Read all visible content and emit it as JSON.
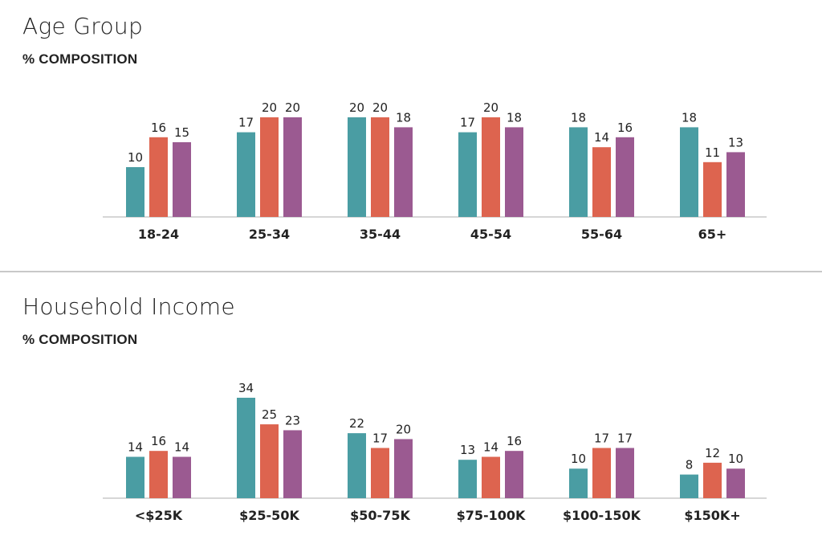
{
  "colors": [
    "#4a9da3",
    "#dd644f",
    "#9b5a91"
  ],
  "axis_color": "#c8c8c8",
  "chart_data": [
    {
      "type": "bar",
      "title": "Age Group",
      "subtitle": "% COMPOSITION",
      "categories": [
        "18-24",
        "25-34",
        "35-44",
        "45-54",
        "55-64",
        "65+"
      ],
      "series": [
        {
          "values": [
            10,
            17,
            20,
            17,
            18,
            18
          ]
        },
        {
          "values": [
            16,
            20,
            20,
            20,
            14,
            11
          ]
        },
        {
          "values": [
            15,
            20,
            18,
            18,
            16,
            13
          ]
        }
      ],
      "ylim": [
        0,
        20
      ],
      "grid": false,
      "legend": "none"
    },
    {
      "type": "bar",
      "title": "Household Income",
      "subtitle": "% COMPOSITION",
      "categories": [
        "<$25K",
        "$25-50K",
        "$50-75K",
        "$75-100K",
        "$100-150K",
        "$150K+"
      ],
      "series": [
        {
          "values": [
            14,
            34,
            22,
            13,
            10,
            8
          ]
        },
        {
          "values": [
            16,
            25,
            17,
            14,
            17,
            12
          ]
        },
        {
          "values": [
            14,
            23,
            20,
            16,
            17,
            10
          ]
        }
      ],
      "ylim": [
        0,
        34
      ],
      "grid": false,
      "legend": "none"
    }
  ]
}
